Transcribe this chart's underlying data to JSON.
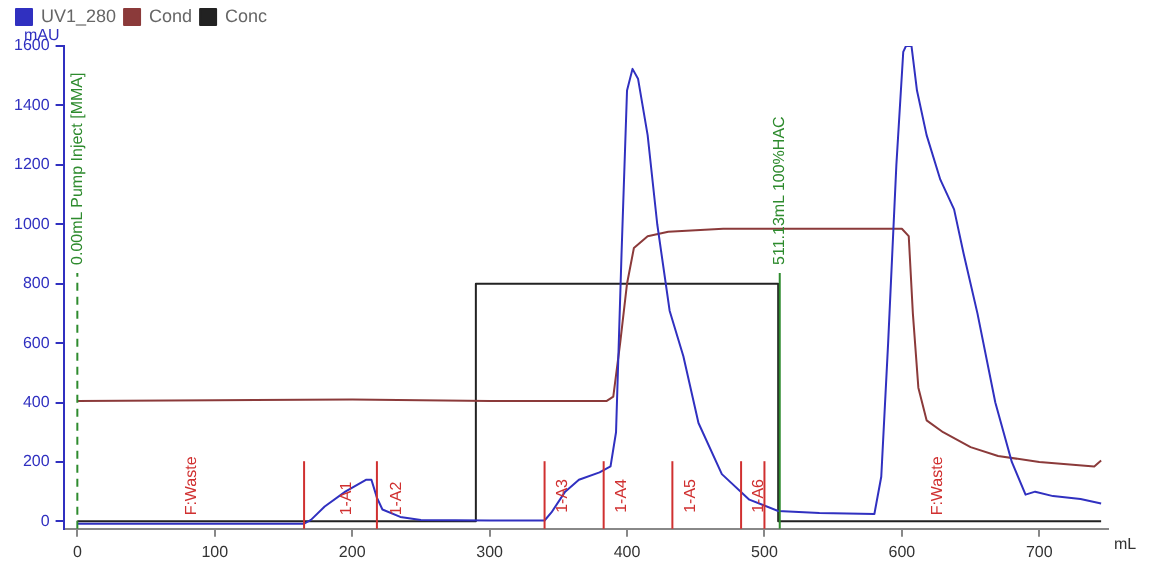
{
  "chart_data": {
    "type": "line",
    "xlabel": "mL",
    "ylabel": "mAU",
    "xlim": [
      -10,
      750
    ],
    "ylim": [
      -25,
      1600
    ],
    "xticks": [
      0,
      100,
      200,
      300,
      400,
      500,
      600,
      700
    ],
    "yticks": [
      0,
      200,
      400,
      600,
      800,
      1000,
      1200,
      1400,
      1600
    ],
    "grid": false,
    "legend": "top left",
    "marker": "none",
    "line_style": "solid",
    "series": [
      {
        "name": "UV1_280",
        "color": "#3030c0",
        "x": [
          0,
          100,
          165,
          170,
          180,
          195,
          210,
          214,
          218,
          222,
          235,
          250,
          300,
          340,
          345,
          355,
          365,
          380,
          388,
          392,
          396,
          400,
          404,
          408,
          415,
          422,
          431,
          441,
          452,
          469,
          489,
          510,
          540,
          580,
          585,
          590,
          596,
          601,
          603,
          607,
          611,
          618,
          628,
          638,
          645,
          655,
          668,
          680,
          690,
          697,
          710,
          730,
          745
        ],
        "values": [
          -8,
          -8,
          -8,
          5,
          50,
          100,
          140,
          140,
          80,
          40,
          15,
          5,
          3,
          3,
          30,
          100,
          140,
          165,
          185,
          300,
          900,
          1450,
          1523,
          1490,
          1300,
          1000,
          709,
          556,
          331,
          159,
          73,
          35,
          28,
          25,
          150,
          600,
          1200,
          1580,
          1600,
          1600,
          1450,
          1300,
          1150,
          1050,
          900,
          700,
          400,
          200,
          90,
          100,
          85,
          75,
          60
        ]
      },
      {
        "name": "Cond",
        "color": "#8b3a3a",
        "x": [
          0,
          100,
          200,
          300,
          385,
          390,
          395,
          400,
          405,
          415,
          430,
          470,
          600,
          605,
          608,
          612,
          618,
          630,
          650,
          670,
          700,
          740,
          745
        ],
        "values": [
          405,
          408,
          410,
          405,
          405,
          420,
          600,
          800,
          920,
          960,
          975,
          985,
          985,
          960,
          700,
          450,
          340,
          300,
          250,
          220,
          200,
          185,
          205
        ]
      },
      {
        "name": "Conc",
        "color": "#222222",
        "x": [
          0,
          290,
          290,
          510,
          510,
          745
        ],
        "values": [
          0,
          0,
          800,
          800,
          0,
          0
        ]
      }
    ],
    "ref_lines": [
      {
        "axis": "x",
        "value": 0,
        "label": "0.00mL Pump Inject [MMA]",
        "color": "#2e8b2e",
        "line_style": "dashed"
      },
      {
        "axis": "x",
        "value": 511.13,
        "label": "511.13mL 100%HAC",
        "color": "#2e8b2e",
        "line_style": "solid"
      },
      {
        "axis": "x",
        "value": 165,
        "color": "#d03030",
        "line_style": "solid"
      },
      {
        "axis": "x",
        "value": 218,
        "color": "#d03030",
        "line_style": "solid"
      },
      {
        "axis": "x",
        "value": 340,
        "label": "1-A3",
        "color": "#d03030",
        "line_style": "solid"
      },
      {
        "axis": "x",
        "value": 383,
        "label": "1-A4",
        "color": "#d03030",
        "line_style": "solid"
      },
      {
        "axis": "x",
        "value": 433,
        "label": "1-A5",
        "color": "#d03030",
        "line_style": "solid"
      },
      {
        "axis": "x",
        "value": 483,
        "label": "1-A6",
        "color": "#d03030",
        "line_style": "solid"
      },
      {
        "axis": "x",
        "value": 500,
        "color": "#d03030",
        "line_style": "solid"
      }
    ],
    "annotations": [
      {
        "text": "F:Waste",
        "x": 83,
        "y": 0
      },
      {
        "text": "1-A1",
        "x": 196,
        "y": 0
      },
      {
        "text": "1-A2",
        "x": 232,
        "y": 0
      },
      {
        "text": "F:Waste",
        "x": 626,
        "y": 0
      }
    ]
  }
}
